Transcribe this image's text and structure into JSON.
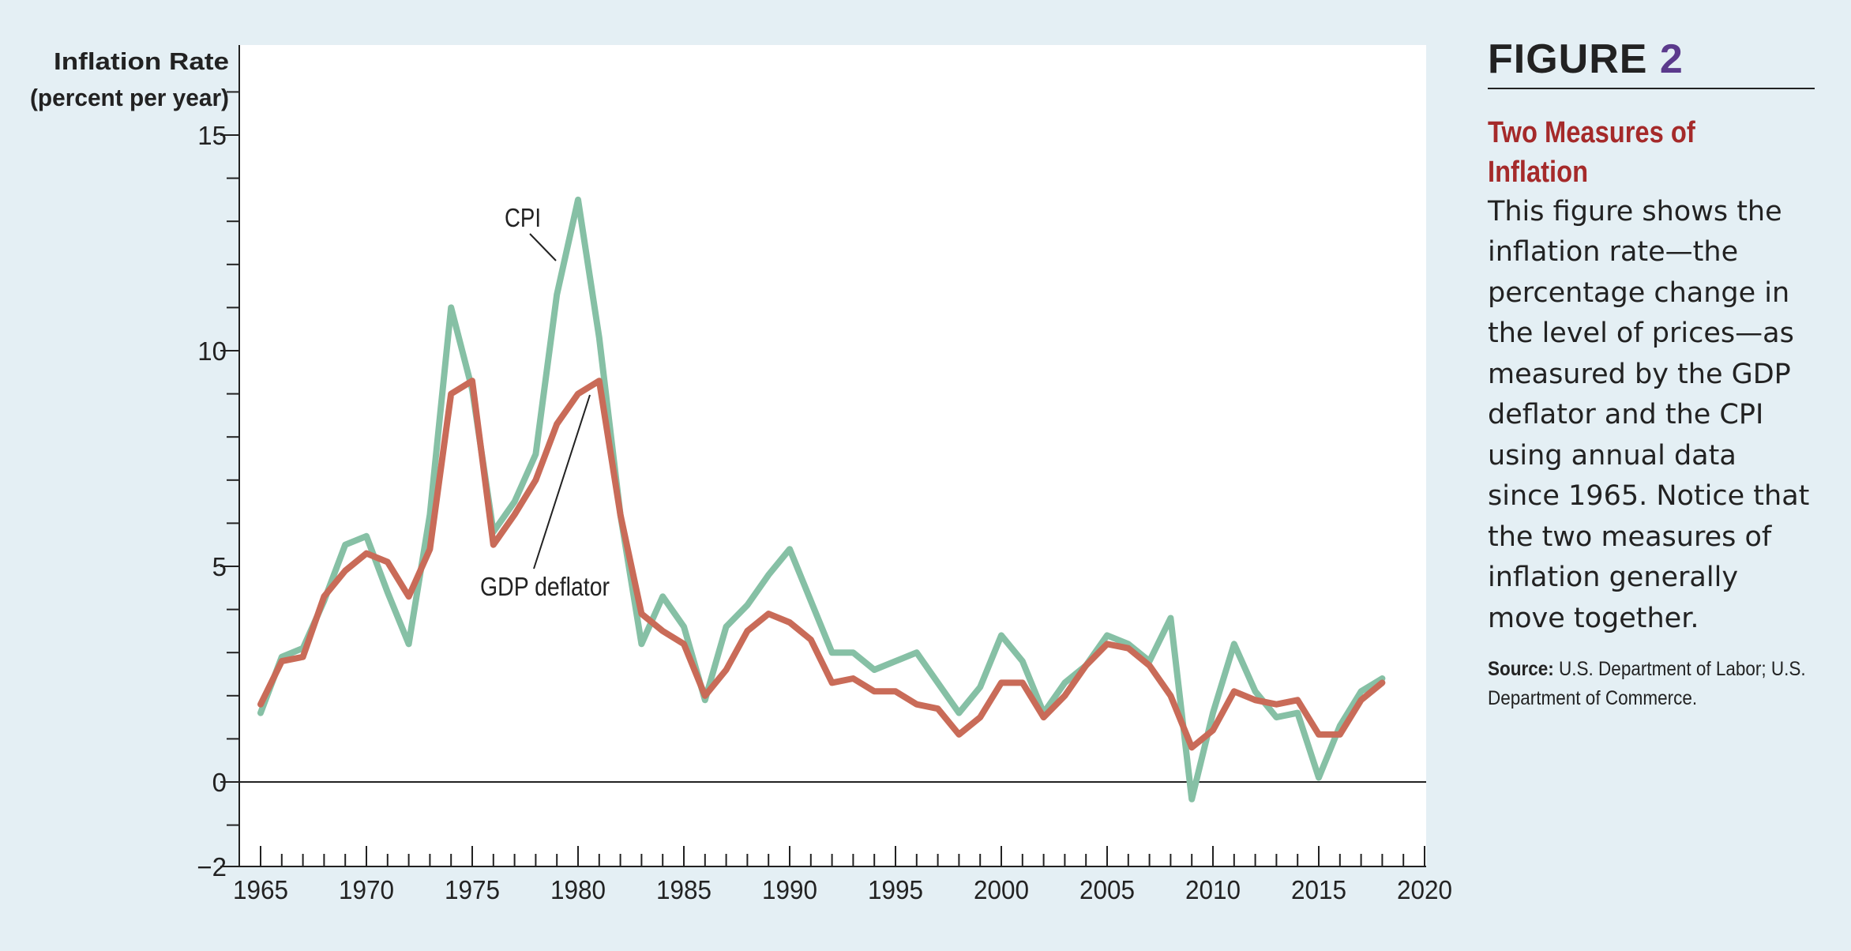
{
  "figure": {
    "label": "FIGURE",
    "number": "2",
    "title": "Two Measures of Inflation",
    "description": "This figure shows the inflation rate—the percentage change in the level of prices—as measured by the GDP deflator and the CPI using annual data since 1965. Notice that the two measures of inflation generally move together.",
    "source_label": "Source:",
    "source_text": "U.S. Department of Labor; U.S. Department of Commerce."
  },
  "colors": {
    "background": "#e4eff4",
    "plot_background": "#ffffff",
    "cpi": "#86c0a5",
    "gdp_deflator": "#c96b58",
    "figure_number": "#5b3a8c",
    "title": "#a52a2a"
  },
  "chart_data": {
    "type": "line",
    "ylabel": [
      "Inflation Rate",
      "(percent per year)"
    ],
    "xlabel": "",
    "xlim": [
      1964,
      2020
    ],
    "ylim": [
      -2,
      17
    ],
    "x_ticks": [
      1965,
      1970,
      1975,
      1980,
      1985,
      1990,
      1995,
      2000,
      2005,
      2010,
      2015,
      2020
    ],
    "y_ticks": [
      -2,
      0,
      5,
      10,
      15
    ],
    "y_tick_labels": [
      "−2",
      "0",
      "5",
      "10",
      "15"
    ],
    "grid": false,
    "zero_line": true,
    "annotations": [
      {
        "text": "CPI",
        "series": "CPI"
      },
      {
        "text": "GDP deflator",
        "series": "GDP deflator"
      }
    ],
    "x": [
      1965,
      1966,
      1967,
      1968,
      1969,
      1970,
      1971,
      1972,
      1973,
      1974,
      1975,
      1976,
      1977,
      1978,
      1979,
      1980,
      1981,
      1982,
      1983,
      1984,
      1985,
      1986,
      1987,
      1988,
      1989,
      1990,
      1991,
      1992,
      1993,
      1994,
      1995,
      1996,
      1997,
      1998,
      1999,
      2000,
      2001,
      2002,
      2003,
      2004,
      2005,
      2006,
      2007,
      2008,
      2009,
      2010,
      2011,
      2012,
      2013,
      2014,
      2015,
      2016,
      2017,
      2018
    ],
    "series": [
      {
        "name": "CPI",
        "values": [
          1.6,
          2.9,
          3.1,
          4.2,
          5.5,
          5.7,
          4.4,
          3.2,
          6.2,
          11.0,
          9.1,
          5.8,
          6.5,
          7.6,
          11.3,
          13.5,
          10.3,
          6.2,
          3.2,
          4.3,
          3.6,
          1.9,
          3.6,
          4.1,
          4.8,
          5.4,
          4.2,
          3.0,
          3.0,
          2.6,
          2.8,
          3.0,
          2.3,
          1.6,
          2.2,
          3.4,
          2.8,
          1.6,
          2.3,
          2.7,
          3.4,
          3.2,
          2.8,
          3.8,
          -0.4,
          1.6,
          3.2,
          2.1,
          1.5,
          1.6,
          0.1,
          1.3,
          2.1,
          2.4
        ]
      },
      {
        "name": "GDP deflator",
        "values": [
          1.8,
          2.8,
          2.9,
          4.3,
          4.9,
          5.3,
          5.1,
          4.3,
          5.4,
          9.0,
          9.3,
          5.5,
          6.2,
          7.0,
          8.3,
          9.0,
          9.3,
          6.2,
          3.9,
          3.5,
          3.2,
          2.0,
          2.6,
          3.5,
          3.9,
          3.7,
          3.3,
          2.3,
          2.4,
          2.1,
          2.1,
          1.8,
          1.7,
          1.1,
          1.5,
          2.3,
          2.3,
          1.5,
          2.0,
          2.7,
          3.2,
          3.1,
          2.7,
          2.0,
          0.8,
          1.2,
          2.1,
          1.9,
          1.8,
          1.9,
          1.1,
          1.1,
          1.9,
          2.3
        ]
      }
    ]
  }
}
